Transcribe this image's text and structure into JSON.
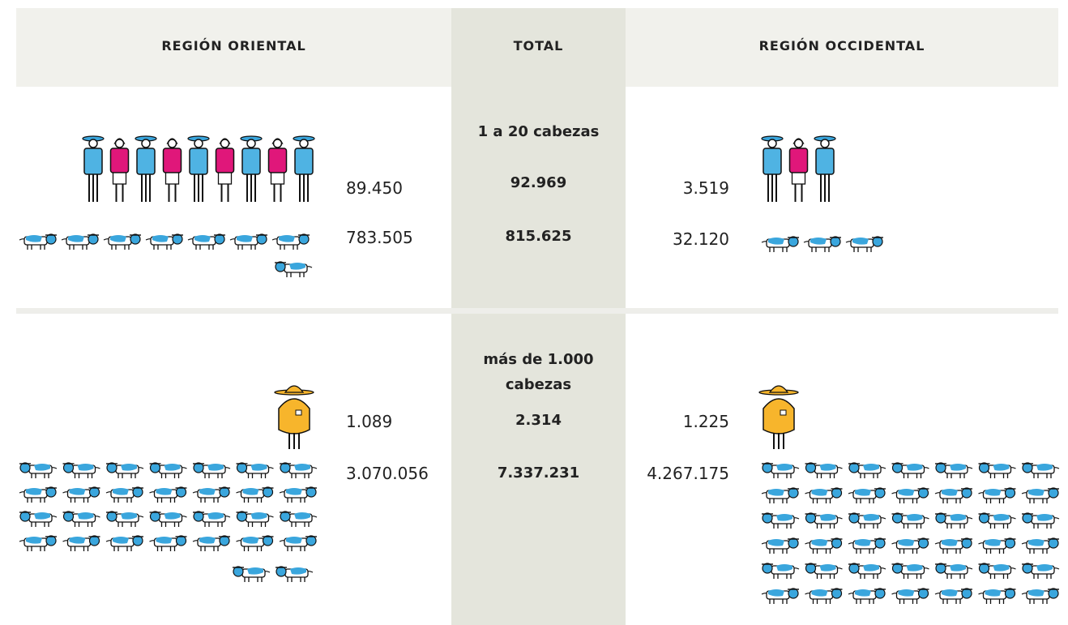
{
  "header": {
    "left": "REGIÓN ORIENTAL",
    "center": "TOTAL",
    "right": "REGIÓN OCCIDENTAL"
  },
  "sections": [
    {
      "label": "1 a 20 cabezas",
      "left": {
        "people": "89.450",
        "cattle": "783.505"
      },
      "total": {
        "people": "92.969",
        "cattle": "815.625"
      },
      "right": {
        "people": "3.519",
        "cattle": "32.120"
      }
    },
    {
      "label": "más de 1.000 cabezas",
      "left": {
        "people": "1.089",
        "cattle": "3.070.056"
      },
      "total": {
        "people": "2.314",
        "cattle": "7.337.231"
      },
      "right": {
        "people": "1.225",
        "cattle": "4.267.175"
      }
    }
  ]
}
